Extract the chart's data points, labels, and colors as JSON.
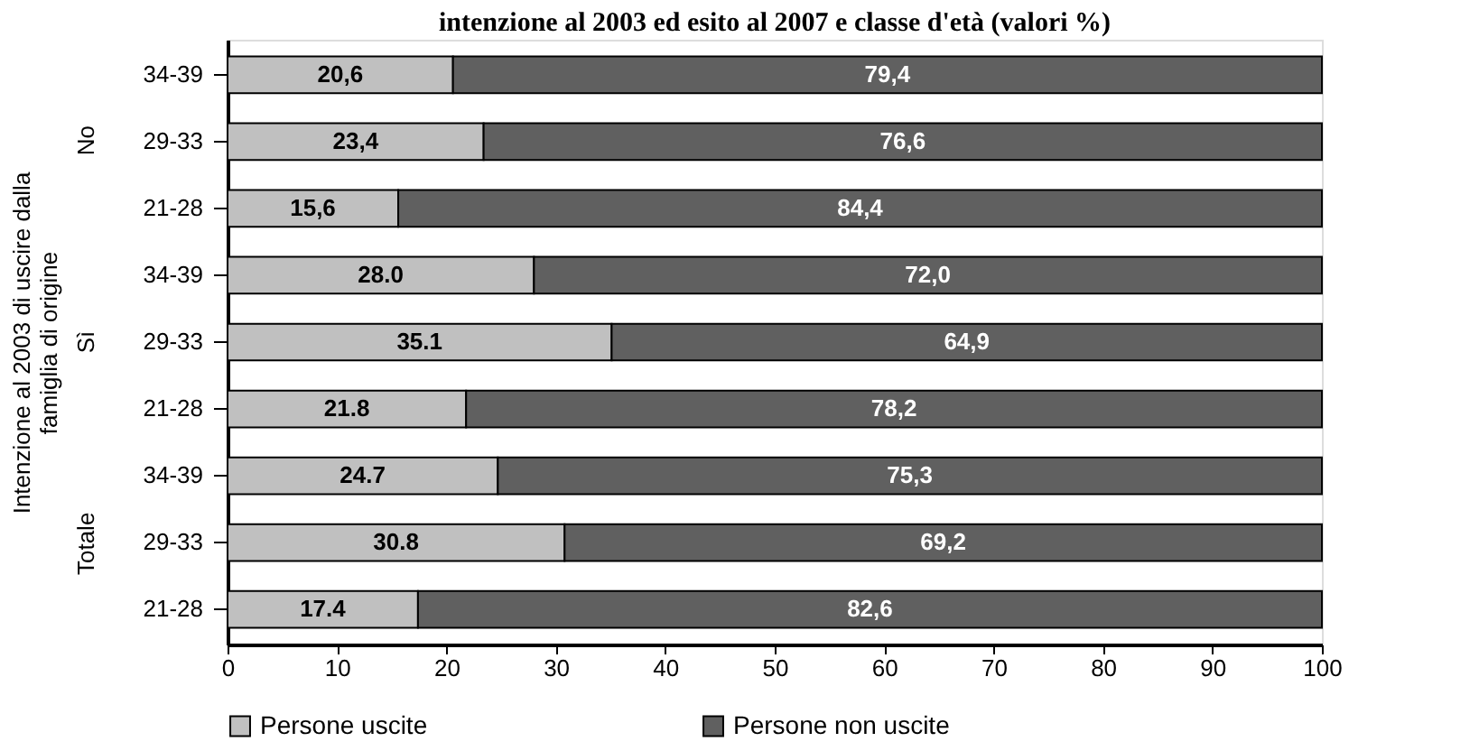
{
  "chart_data": {
    "type": "bar",
    "orientation": "horizontal",
    "stacked": true,
    "title": "intenzione al 2003 ed esito al 2007 e classe d'età (valori %)",
    "ylabel": "Intenzione al 2003 di uscire dalla\nfamiglia di origine",
    "categories": [
      "34-39",
      "29-33",
      "21-28",
      "34-39",
      "29-33",
      "21-28",
      "34-39",
      "29-33",
      "21-28"
    ],
    "annotations": [
      "No",
      "Sì",
      "Totale"
    ],
    "series": [
      {
        "name": "Persone uscite",
        "color": "#c0c0c0",
        "values": [
          20.6,
          23.4,
          15.6,
          28.0,
          35.1,
          21.8,
          24.7,
          30.8,
          17.4
        ],
        "value_labels": [
          "20,6",
          "23,4",
          "15,6",
          "28.0",
          "35.1",
          "21.8",
          "24.7",
          "30.8",
          "17.4"
        ]
      },
      {
        "name": "Persone non uscite",
        "color": "#606060",
        "values": [
          79.4,
          76.6,
          84.4,
          72.0,
          64.9,
          78.2,
          75.3,
          69.2,
          82.6
        ],
        "value_labels": [
          "79,4",
          "76,6",
          "84,4",
          "72,0",
          "64,9",
          "78,2",
          "75,3",
          "69,2",
          "82,6"
        ]
      }
    ],
    "xlim": [
      0,
      100
    ],
    "xticks": [
      0,
      10,
      20,
      30,
      40,
      50,
      60,
      70,
      80,
      90,
      100
    ],
    "grid": false,
    "legend": "bottom"
  }
}
